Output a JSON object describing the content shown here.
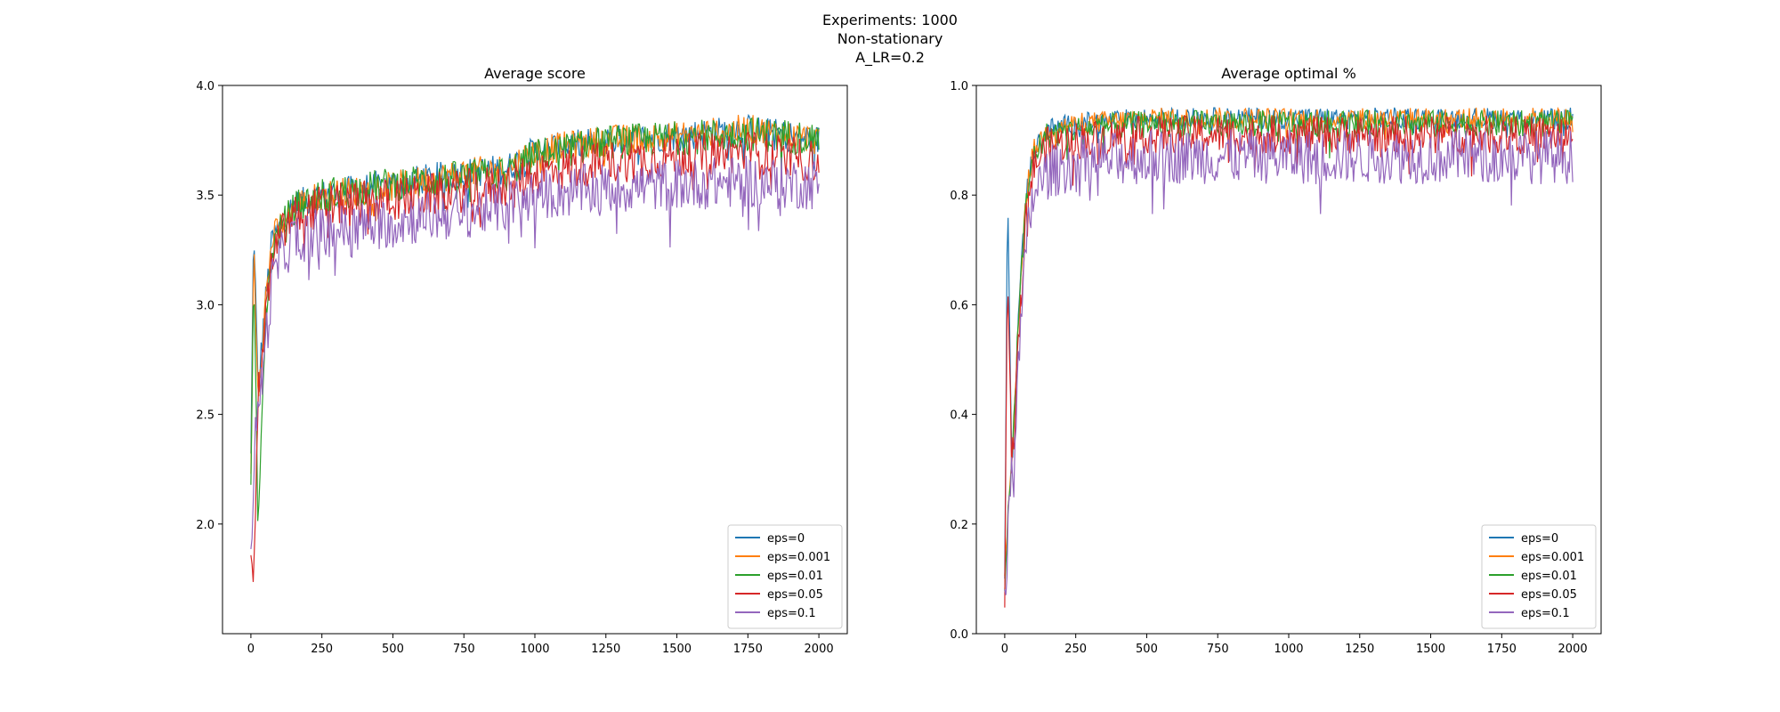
{
  "figure": {
    "title_lines": [
      "Experiments: 1000",
      "Non-stationary",
      "A_LR=0.2"
    ]
  },
  "legend": [
    {
      "label": "eps=0",
      "color": "#1f77b4"
    },
    {
      "label": "eps=0.001",
      "color": "#ff7f0e"
    },
    {
      "label": "eps=0.01",
      "color": "#2ca02c"
    },
    {
      "label": "eps=0.05",
      "color": "#d62728"
    },
    {
      "label": "eps=0.1",
      "color": "#9467bd"
    }
  ],
  "chart_data": [
    {
      "type": "line",
      "title": "Average score",
      "xlabel": "",
      "ylabel": "",
      "xlim": [
        -100,
        2100
      ],
      "ylim": [
        1.5,
        4.0
      ],
      "xticks": [
        0,
        250,
        500,
        750,
        1000,
        1250,
        1500,
        1750,
        2000
      ],
      "yticks": [
        2.0,
        2.5,
        3.0,
        3.5,
        4.0
      ],
      "ytick_labels": [
        "2.0",
        "2.5",
        "3.0",
        "3.5",
        "4.0"
      ],
      "legend_loc": "lower right",
      "series": [
        {
          "name": "eps=0",
          "x": [
            0,
            10,
            25,
            50,
            75,
            100,
            150,
            250,
            500,
            750,
            900,
            1000,
            1250,
            1500,
            1750,
            2000
          ],
          "values": [
            2.3,
            3.4,
            2.6,
            3.0,
            3.3,
            3.35,
            3.45,
            3.5,
            3.55,
            3.6,
            3.62,
            3.7,
            3.75,
            3.77,
            3.8,
            3.75
          ],
          "noise": 0.07
        },
        {
          "name": "eps=0.001",
          "x": [
            0,
            10,
            25,
            50,
            75,
            100,
            150,
            250,
            500,
            750,
            900,
            1000,
            1250,
            1500,
            1750,
            2000
          ],
          "values": [
            2.2,
            3.3,
            2.6,
            3.0,
            3.3,
            3.35,
            3.45,
            3.5,
            3.54,
            3.6,
            3.62,
            3.7,
            3.75,
            3.77,
            3.8,
            3.75
          ],
          "noise": 0.07
        },
        {
          "name": "eps=0.01",
          "x": [
            0,
            10,
            25,
            50,
            75,
            100,
            150,
            250,
            500,
            750,
            900,
            1000,
            1250,
            1500,
            1750,
            2000
          ],
          "values": [
            2.1,
            3.2,
            2.0,
            2.9,
            3.25,
            3.33,
            3.44,
            3.5,
            3.55,
            3.58,
            3.6,
            3.68,
            3.74,
            3.76,
            3.78,
            3.76
          ],
          "noise": 0.08
        },
        {
          "name": "eps=0.05",
          "x": [
            0,
            10,
            25,
            50,
            75,
            100,
            150,
            250,
            500,
            750,
            900,
            1000,
            1250,
            1500,
            1750,
            2000
          ],
          "values": [
            1.9,
            1.65,
            2.6,
            2.9,
            3.2,
            3.3,
            3.4,
            3.45,
            3.48,
            3.52,
            3.55,
            3.6,
            3.65,
            3.68,
            3.7,
            3.65
          ],
          "noise": 0.1
        },
        {
          "name": "eps=0.1",
          "x": [
            0,
            10,
            25,
            50,
            75,
            100,
            150,
            250,
            500,
            750,
            900,
            1000,
            1250,
            1500,
            1750,
            2000
          ],
          "values": [
            1.8,
            2.3,
            2.5,
            2.8,
            3.1,
            3.2,
            3.3,
            3.33,
            3.38,
            3.42,
            3.45,
            3.5,
            3.53,
            3.55,
            3.56,
            3.55
          ],
          "noise": 0.12
        }
      ]
    },
    {
      "type": "line",
      "title": "Average optimal %",
      "xlabel": "",
      "ylabel": "",
      "xlim": [
        -100,
        2100
      ],
      "ylim": [
        0.0,
        1.0
      ],
      "xticks": [
        0,
        250,
        500,
        750,
        1000,
        1250,
        1500,
        1750,
        2000
      ],
      "yticks": [
        0.0,
        0.2,
        0.4,
        0.6,
        0.8,
        1.0
      ],
      "ytick_labels": [
        "0.0",
        "0.2",
        "0.4",
        "0.6",
        "0.8",
        "1.0"
      ],
      "legend_loc": "lower right",
      "series": [
        {
          "name": "eps=0",
          "x": [
            0,
            10,
            25,
            50,
            75,
            100,
            150,
            250,
            500,
            750,
            1000,
            1250,
            1500,
            1750,
            2000
          ],
          "values": [
            0.1,
            0.84,
            0.3,
            0.6,
            0.8,
            0.88,
            0.92,
            0.93,
            0.94,
            0.94,
            0.94,
            0.94,
            0.94,
            0.94,
            0.94
          ],
          "noise": 0.02
        },
        {
          "name": "eps=0.001",
          "x": [
            0,
            10,
            25,
            50,
            75,
            100,
            150,
            250,
            500,
            750,
            1000,
            1250,
            1500,
            1750,
            2000
          ],
          "values": [
            0.1,
            0.2,
            0.3,
            0.6,
            0.8,
            0.88,
            0.92,
            0.93,
            0.94,
            0.94,
            0.94,
            0.94,
            0.94,
            0.94,
            0.94
          ],
          "noise": 0.02
        },
        {
          "name": "eps=0.01",
          "x": [
            0,
            10,
            25,
            50,
            75,
            100,
            150,
            250,
            500,
            750,
            1000,
            1250,
            1500,
            1750,
            2000
          ],
          "values": [
            0.1,
            0.2,
            0.3,
            0.6,
            0.78,
            0.87,
            0.91,
            0.92,
            0.93,
            0.93,
            0.93,
            0.93,
            0.93,
            0.93,
            0.93
          ],
          "noise": 0.025
        },
        {
          "name": "eps=0.05",
          "x": [
            0,
            10,
            25,
            50,
            75,
            100,
            150,
            250,
            500,
            750,
            1000,
            1250,
            1500,
            1750,
            2000
          ],
          "values": [
            0.05,
            0.7,
            0.3,
            0.55,
            0.76,
            0.85,
            0.89,
            0.9,
            0.91,
            0.91,
            0.91,
            0.91,
            0.91,
            0.91,
            0.91
          ],
          "noise": 0.035
        },
        {
          "name": "eps=0.1",
          "x": [
            0,
            10,
            25,
            50,
            75,
            100,
            150,
            250,
            500,
            750,
            1000,
            1250,
            1500,
            1750,
            2000
          ],
          "values": [
            0.08,
            0.15,
            0.3,
            0.5,
            0.7,
            0.8,
            0.84,
            0.86,
            0.87,
            0.87,
            0.87,
            0.87,
            0.87,
            0.87,
            0.87
          ],
          "noise": 0.05
        }
      ]
    }
  ]
}
